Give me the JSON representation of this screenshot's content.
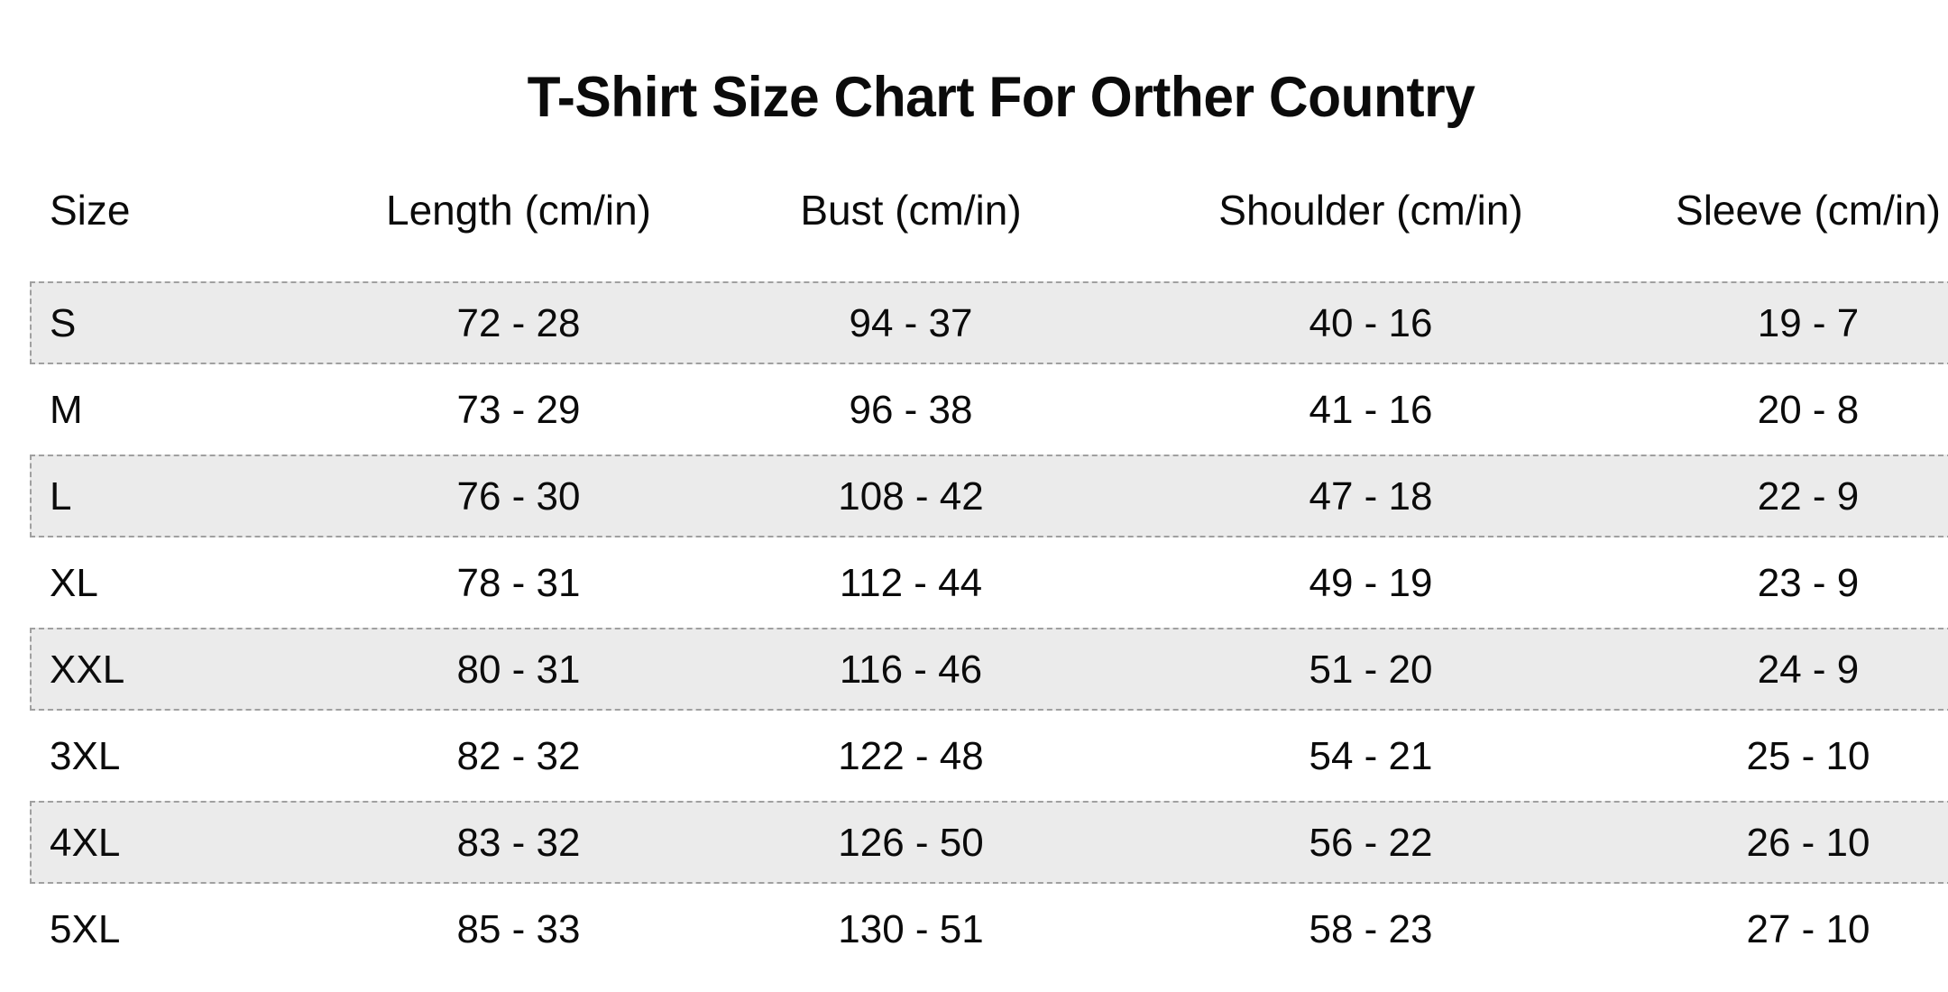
{
  "chart_data": {
    "type": "table",
    "title": "T-Shirt Size Chart For Orther Country",
    "columns": [
      "Size",
      "Length (cm/in)",
      "Bust (cm/in)",
      "Shoulder (cm/in)",
      "Sleeve (cm/in)"
    ],
    "rows": [
      [
        "S",
        "72 - 28",
        "94 - 37",
        "40 - 16",
        "19 - 7"
      ],
      [
        "M",
        "73 - 29",
        "96 - 38",
        "41 - 16",
        "20 - 8"
      ],
      [
        "L",
        "76 - 30",
        "108 - 42",
        "47 - 18",
        "22 - 9"
      ],
      [
        "XL",
        "78 - 31",
        "112 - 44",
        "49 - 19",
        "23 - 9"
      ],
      [
        "XXL",
        "80 - 31",
        "116 - 46",
        "51 - 20",
        "24 - 9"
      ],
      [
        "3XL",
        "82 - 32",
        "122 - 48",
        "54 - 21",
        "25 - 10"
      ],
      [
        "4XL",
        "83 - 32",
        "126 - 50",
        "56 - 22",
        "26 - 10"
      ],
      [
        "5XL",
        "85 - 33",
        "130 - 51",
        "58 - 23",
        "27 - 10"
      ]
    ],
    "shaded_row_indices": [
      0,
      2,
      4,
      6
    ],
    "layout": {
      "header_alignment": "Size left, others centered",
      "grid": "off"
    }
  },
  "colors": {
    "background": "#ffffff",
    "text": "#0b0b0b",
    "shaded_band_fill": "#ebebeb",
    "shaded_band_dashed_border": "#a0a0a0"
  }
}
